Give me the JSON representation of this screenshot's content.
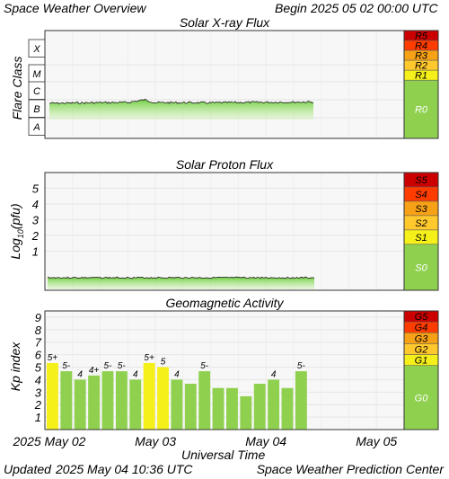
{
  "header": {
    "title": "Space Weather Overview",
    "begin_label": "Begin",
    "begin_date": "2025 05 02 00:00 UTC"
  },
  "footer": {
    "updated_label": "Updated",
    "updated_value": "2025 May 04 10:36 UTC",
    "credit": "Space Weather Prediction Center"
  },
  "colors": {
    "panel_bg": "#f7f7f7",
    "grid": "#e6e6e6",
    "flux_green": "#7ed957",
    "kp_green": "#8fd14f",
    "kp_yellow": "#f5ef1a",
    "scale_green": "#8fd14f",
    "scale_yellow": "#f5ef1a",
    "scale_orange": "#f6a116",
    "scale_red_orange": "#ff3c00",
    "scale_red": "#cc0000"
  },
  "chart_data": [
    {
      "type": "area",
      "title": "Solar X-ray Flux",
      "ylabel": "Flare Class",
      "y_tick_labels": [
        "X",
        "M",
        "C",
        "B",
        "A"
      ],
      "scale_labels": [
        "R5",
        "R4",
        "R3",
        "R2",
        "R1",
        "R0"
      ],
      "scale_colors": [
        "#cc0000",
        "#ff3c00",
        "#f6a116",
        "#ffc82d",
        "#f5ef1a",
        "#8fd14f"
      ],
      "xlim_days": [
        0,
        3
      ],
      "data_end_day": 2.44,
      "flux_level_class": "B",
      "x": [
        0,
        0.25,
        0.5,
        0.75,
        0.9,
        1.0,
        1.25,
        1.5,
        1.75,
        2.0,
        2.25,
        2.44
      ],
      "y_class_log": [
        -6.7,
        -6.68,
        -6.66,
        -6.65,
        -6.5,
        -6.66,
        -6.66,
        -6.67,
        -6.65,
        -6.64,
        -6.63,
        -6.62
      ],
      "grid": true
    },
    {
      "type": "area",
      "title": "Solar Proton Flux",
      "ylabel": "Log10(pfu)",
      "ylabel_main": "Log",
      "ylabel_sub": "10",
      "ylabel_unit": "(pfu)",
      "y_tick_labels": [
        "5",
        "4",
        "3",
        "2",
        "1"
      ],
      "ylim": [
        -1.5,
        6
      ],
      "scale_labels": [
        "S5",
        "S4",
        "S3",
        "S2",
        "S1",
        "S0"
      ],
      "scale_colors": [
        "#cc0000",
        "#ff3c00",
        "#f6a116",
        "#ffc82d",
        "#f5ef1a",
        "#8fd14f"
      ],
      "xlim_days": [
        0,
        3
      ],
      "data_end_day": 2.44,
      "x": [
        0,
        0.5,
        1.0,
        1.5,
        2.0,
        2.44
      ],
      "y_log10_pfu": [
        -0.7,
        -0.7,
        -0.69,
        -0.7,
        -0.69,
        -0.69
      ],
      "grid": true
    },
    {
      "type": "bar",
      "title": "Geomagnetic Activity",
      "ylabel": "Kp index",
      "y_tick_labels": [
        "9",
        "8",
        "7",
        "6",
        "5",
        "4",
        "3",
        "2",
        "1"
      ],
      "ylim": [
        0,
        9.5
      ],
      "scale_labels": [
        "G5",
        "G4",
        "G3",
        "G2",
        "G1",
        "G0"
      ],
      "scale_colors": [
        "#cc0000",
        "#ff3c00",
        "#f6a116",
        "#ffc82d",
        "#f5ef1a",
        "#8fd14f"
      ],
      "values": [
        5.33,
        4.67,
        4.0,
        4.33,
        4.67,
        4.67,
        4.0,
        5.33,
        5.0,
        4.0,
        3.67,
        4.67,
        3.33,
        3.33,
        2.67,
        3.67,
        4.0,
        3.33,
        4.67
      ],
      "bar_labels": [
        "5+",
        "5-",
        "4",
        "4+",
        "5-",
        "5-",
        "4",
        "5+",
        "5",
        "4",
        "",
        "5-",
        "",
        "",
        "",
        "",
        "4",
        "",
        "5-"
      ],
      "bar_colors": [
        "yellow",
        "green",
        "green",
        "green",
        "green",
        "green",
        "green",
        "yellow",
        "yellow",
        "green",
        "green",
        "green",
        "green",
        "green",
        "green",
        "green",
        "green",
        "green",
        "green"
      ],
      "grid": true
    }
  ],
  "x_axis": {
    "label": "Universal Time",
    "ticks": [
      "2025 May 02",
      "May 03",
      "May 04",
      "May 05"
    ]
  }
}
